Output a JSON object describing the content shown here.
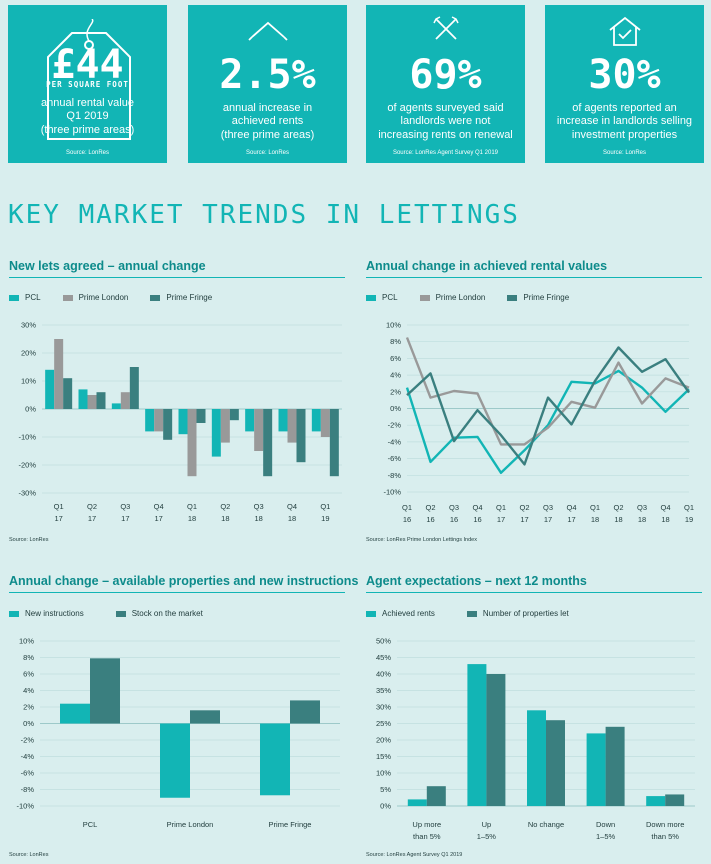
{
  "header": {
    "title": "KEY MARKET TRENDS IN LETTINGS"
  },
  "stats": [
    {
      "big": "£44",
      "sub": "PER SQUARE FOOT",
      "lines": [
        "annual rental value",
        "Q1 2019",
        "(three prime areas)"
      ],
      "source": "Source: LonRes",
      "icon": "price-tag-icon"
    },
    {
      "big": "2.5%",
      "lines": [
        "annual increase in",
        "achieved rents",
        "(three prime areas)"
      ],
      "source": "Source: LonRes",
      "icon": "line-graph-icon"
    },
    {
      "big": "69%",
      "lines": [
        "of agents surveyed said",
        "landlords were not",
        "increasing rents on renewal"
      ],
      "source": "Source: LonRes Agent Survey Q1 2019",
      "icon": "crossed-arrows-icon"
    },
    {
      "big": "30%",
      "lines": [
        "of agents reported an",
        "increase in landlords selling",
        "investment properties"
      ],
      "source": "Source: LonRes",
      "icon": "house-check-icon"
    }
  ],
  "colors": {
    "teal": "#12b5b5",
    "grey": "#999999",
    "dark_teal": "#3a7f7f"
  },
  "charts": {
    "new_lets": {
      "title": "New lets agreed – annual change",
      "source": "Source: LonRes"
    },
    "rental": {
      "title": "Annual change in achieved rental values",
      "source": "Source: LonRes Prime London Lettings Index"
    },
    "available": {
      "title": "Annual change – available properties and new instructions",
      "source": "Source: LonRes"
    },
    "expectations": {
      "title": "Agent expectations – next 12 months",
      "source": "Source: LonRes Agent Survey Q1 2019"
    }
  },
  "chart_data": [
    {
      "type": "bar",
      "title": "New lets agreed – annual change",
      "categories": [
        [
          "Q1",
          "17"
        ],
        [
          "Q2",
          "17"
        ],
        [
          "Q3",
          "17"
        ],
        [
          "Q4",
          "17"
        ],
        [
          "Q1",
          "18"
        ],
        [
          "Q2",
          "18"
        ],
        [
          "Q3",
          "18"
        ],
        [
          "Q4",
          "18"
        ],
        [
          "Q1",
          "19"
        ]
      ],
      "series": [
        {
          "name": "PCL",
          "values": [
            14,
            7,
            2,
            -8,
            -9,
            -17,
            -8,
            -8,
            -8
          ]
        },
        {
          "name": "Prime London",
          "values": [
            25,
            5,
            6,
            -8,
            -24,
            -12,
            -15,
            -12,
            -10
          ]
        },
        {
          "name": "Prime Fringe",
          "values": [
            11,
            6,
            15,
            -11,
            -5,
            -4,
            -24,
            -19,
            -24
          ]
        }
      ],
      "ylim": [
        -30,
        30
      ],
      "yticks": [
        "30%",
        "20%",
        "10%",
        "0%",
        "-10%",
        "-20%",
        "-30%"
      ]
    },
    {
      "type": "line",
      "title": "Annual change in achieved rental values",
      "categories": [
        [
          "Q1",
          "16"
        ],
        [
          "Q2",
          "16"
        ],
        [
          "Q3",
          "16"
        ],
        [
          "Q4",
          "16"
        ],
        [
          "Q1",
          "17"
        ],
        [
          "Q2",
          "17"
        ],
        [
          "Q3",
          "17"
        ],
        [
          "Q4",
          "17"
        ],
        [
          "Q1",
          "18"
        ],
        [
          "Q2",
          "18"
        ],
        [
          "Q3",
          "18"
        ],
        [
          "Q4",
          "18"
        ],
        [
          "Q1",
          "19"
        ]
      ],
      "series": [
        {
          "name": "PCL",
          "values": [
            2.5,
            -6.4,
            -3.5,
            -3.4,
            -7.7,
            -5.0,
            -2.0,
            3.2,
            3.0,
            4.5,
            2.5,
            -0.4,
            2.3
          ]
        },
        {
          "name": "Prime London",
          "values": [
            8.5,
            1.3,
            2.1,
            1.8,
            -4.3,
            -4.3,
            -2.3,
            0.8,
            0.1,
            5.5,
            0.6,
            3.6,
            2.5
          ]
        },
        {
          "name": "Prime Fringe",
          "values": [
            1.6,
            4.2,
            -3.9,
            -0.2,
            -3.2,
            -6.7,
            1.3,
            -1.9,
            3.3,
            7.3,
            4.4,
            5.9,
            1.9
          ]
        }
      ],
      "ylim": [
        -10,
        10
      ],
      "yticks": [
        "10%",
        "8%",
        "6%",
        "4%",
        "2%",
        "0%",
        "-2%",
        "-4%",
        "-6%",
        "-8%",
        "-10%"
      ]
    },
    {
      "type": "bar",
      "title": "Annual change – available properties and new instructions",
      "categories": [
        "PCL",
        "Prime London",
        "Prime Fringe"
      ],
      "series": [
        {
          "name": "New instructions",
          "values": [
            2.4,
            -9.0,
            -8.7
          ]
        },
        {
          "name": "Stock on the market",
          "values": [
            7.9,
            1.6,
            2.8
          ]
        }
      ],
      "ylim": [
        -10,
        10
      ],
      "yticks": [
        "10%",
        "8%",
        "6%",
        "4%",
        "2%",
        "0%",
        "-2%",
        "-4%",
        "-6%",
        "-8%",
        "-10%"
      ]
    },
    {
      "type": "bar",
      "title": "Agent expectations – next 12 months",
      "categories": [
        [
          "Up more",
          "than 5%"
        ],
        [
          "Up",
          "1–5%"
        ],
        [
          "No change"
        ],
        [
          "Down",
          "1–5%"
        ],
        [
          "Down more",
          "than 5%"
        ]
      ],
      "series": [
        {
          "name": "Achieved rents",
          "values": [
            2,
            43,
            29,
            22,
            3
          ]
        },
        {
          "name": "Number of properties let",
          "values": [
            6,
            40,
            26,
            24,
            3.5
          ]
        }
      ],
      "ylim": [
        0,
        50
      ],
      "yticks": [
        "50%",
        "45%",
        "40%",
        "35%",
        "30%",
        "25%",
        "20%",
        "15%",
        "10%",
        "5%",
        "0%"
      ]
    }
  ]
}
